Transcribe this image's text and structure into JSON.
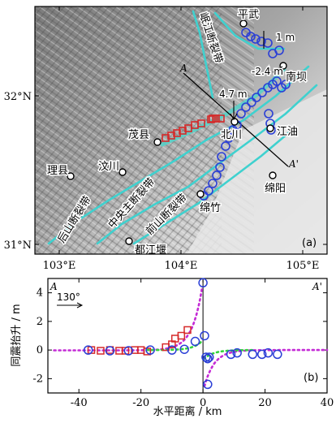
{
  "panel_a": {
    "panel_label": "(a)",
    "longitude_ticks": [
      "103°E",
      "104°E",
      "105°E"
    ],
    "latitude_ticks": [
      "32°N",
      "31°N"
    ],
    "fault_labels": {
      "minjiang": "岷江断裂带",
      "houshan": "后山断裂带",
      "zhongyangzhu": "中央主断裂带",
      "qianshan": "前山断裂带"
    },
    "city_labels": {
      "pingwu": "平武",
      "nanba": "南坝",
      "maoxian": "茂县",
      "beichuan": "北川",
      "jiangyou": "江油",
      "lixian": "理县",
      "wenchuan": "汶川",
      "mianyang": "绵阳",
      "mianzhu": "绵竹",
      "dujiangyan": "都江堰"
    },
    "annotations": {
      "offset_1m": "1 m",
      "offset_2_4m": "-2.4 m",
      "offset_4_7m": "4.7 m",
      "profile_start": "A",
      "profile_end": "A'"
    },
    "colors": {
      "fault": "#3fd1cf",
      "surface_rupture": "#5ad0c8",
      "circle_marker": "#2b3fd6",
      "square_marker": "#d62a2a",
      "city_marker": "#000000"
    }
  },
  "panel_b": {
    "panel_label": "(b)",
    "profile_start": "A",
    "profile_end": "A'",
    "azimuth": "130°",
    "colors": {
      "circles": "#2b3fd6",
      "squares": "#d62a2a",
      "model_curve_magenta": "#c42bd6",
      "model_curve_green": "#32d43c"
    },
    "chart_data": {
      "type": "scatter",
      "xlabel": "水平距离 / km",
      "ylabel": "同震抬升 / m",
      "xlim": [
        -50,
        40
      ],
      "ylim": [
        -3,
        5
      ],
      "xticks": [
        -40,
        -20,
        0,
        20,
        40
      ],
      "yticks": [
        -2,
        0,
        2,
        4
      ],
      "series": [
        {
          "marker": "circle",
          "points": [
            [
              -37,
              0
            ],
            [
              -30,
              -0.05
            ],
            [
              -24,
              -0.05
            ],
            [
              -17,
              0
            ],
            [
              -10,
              0
            ],
            [
              -6,
              0.05
            ],
            [
              -2.5,
              0.6
            ],
            [
              0,
              4.7
            ],
            [
              0.5,
              1.0
            ],
            [
              1,
              -0.5
            ],
            [
              1.5,
              -0.6
            ],
            [
              2,
              -0.5
            ],
            [
              1.5,
              -2.4
            ],
            [
              9,
              -0.3
            ],
            [
              11,
              -0.2
            ],
            [
              16,
              -0.3
            ],
            [
              19,
              -0.3
            ],
            [
              21,
              -0.2
            ],
            [
              24,
              -0.3
            ]
          ]
        },
        {
          "marker": "square",
          "points": [
            [
              -36,
              0
            ],
            [
              -33,
              -0.05
            ],
            [
              -30,
              0
            ],
            [
              -27,
              -0.05
            ],
            [
              -25,
              -0.05
            ],
            [
              -22,
              0
            ],
            [
              -20,
              0
            ],
            [
              -18,
              -0.1
            ],
            [
              -12,
              0.2
            ],
            [
              -10,
              0.4
            ],
            [
              -9,
              0.8
            ],
            [
              -7,
              1.0
            ],
            [
              -5,
              1.4
            ]
          ]
        }
      ]
    }
  }
}
